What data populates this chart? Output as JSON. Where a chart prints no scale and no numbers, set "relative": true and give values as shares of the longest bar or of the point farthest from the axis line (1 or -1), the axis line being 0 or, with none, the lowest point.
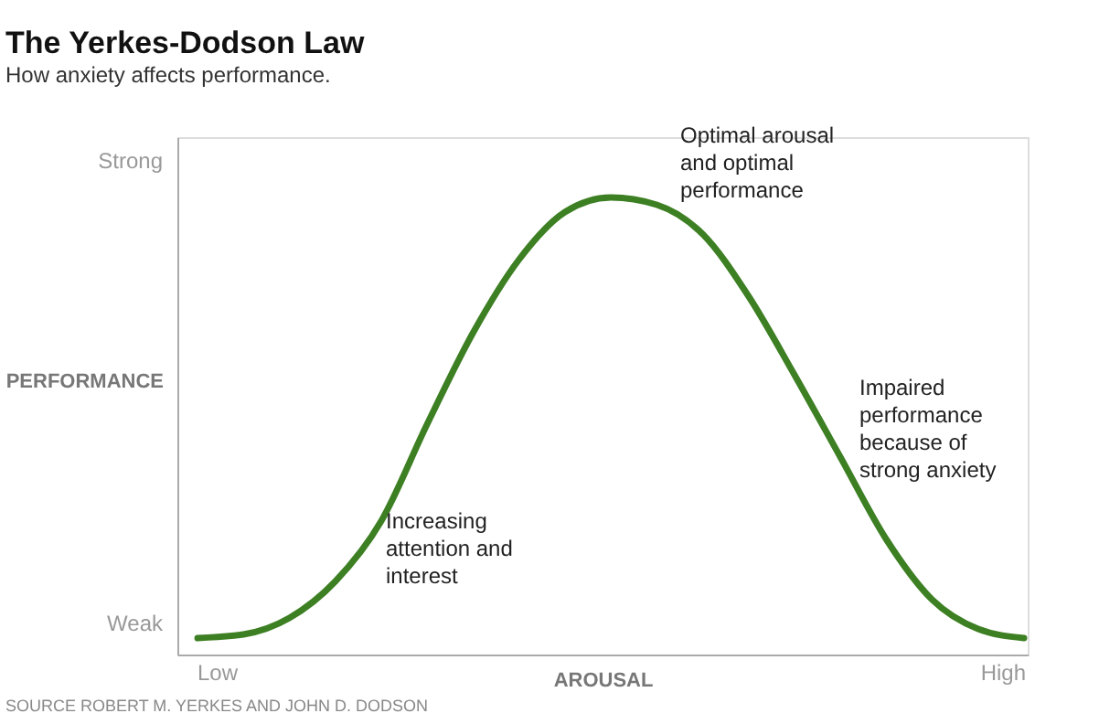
{
  "chart_data": {
    "type": "line",
    "title": "The Yerkes-Dodson Law",
    "subtitle": "How anxiety affects performance.",
    "xlabel": "AROUSAL",
    "ylabel": "PERFORMANCE",
    "relative": true,
    "categories": [
      null,
      null,
      null,
      null,
      null,
      null,
      null,
      null,
      null,
      null,
      null,
      null,
      null,
      null,
      null,
      null,
      null,
      null,
      null
    ],
    "series": [
      {
        "color": "#3d7f23",
        "values": [
          0.036,
          0.044,
          0.08,
          0.16,
          0.292,
          0.504,
          0.704,
          0.864,
          0.968,
          1.0,
          0.984,
          0.92,
          0.784,
          0.612,
          0.432,
          0.252,
          0.12,
          0.056,
          0.036
        ]
      }
    ],
    "annotations": [
      "Strong",
      "Weak",
      "Low",
      "High",
      "Optimal arousal and optimal performance",
      "Impaired performance because of strong anxiety",
      "Increasing attention and interest",
      "SOURCE ROBERT M. YERKES AND JOHN D. DODSON"
    ],
    "legend": false,
    "marker": "none",
    "line_style": "solid"
  }
}
